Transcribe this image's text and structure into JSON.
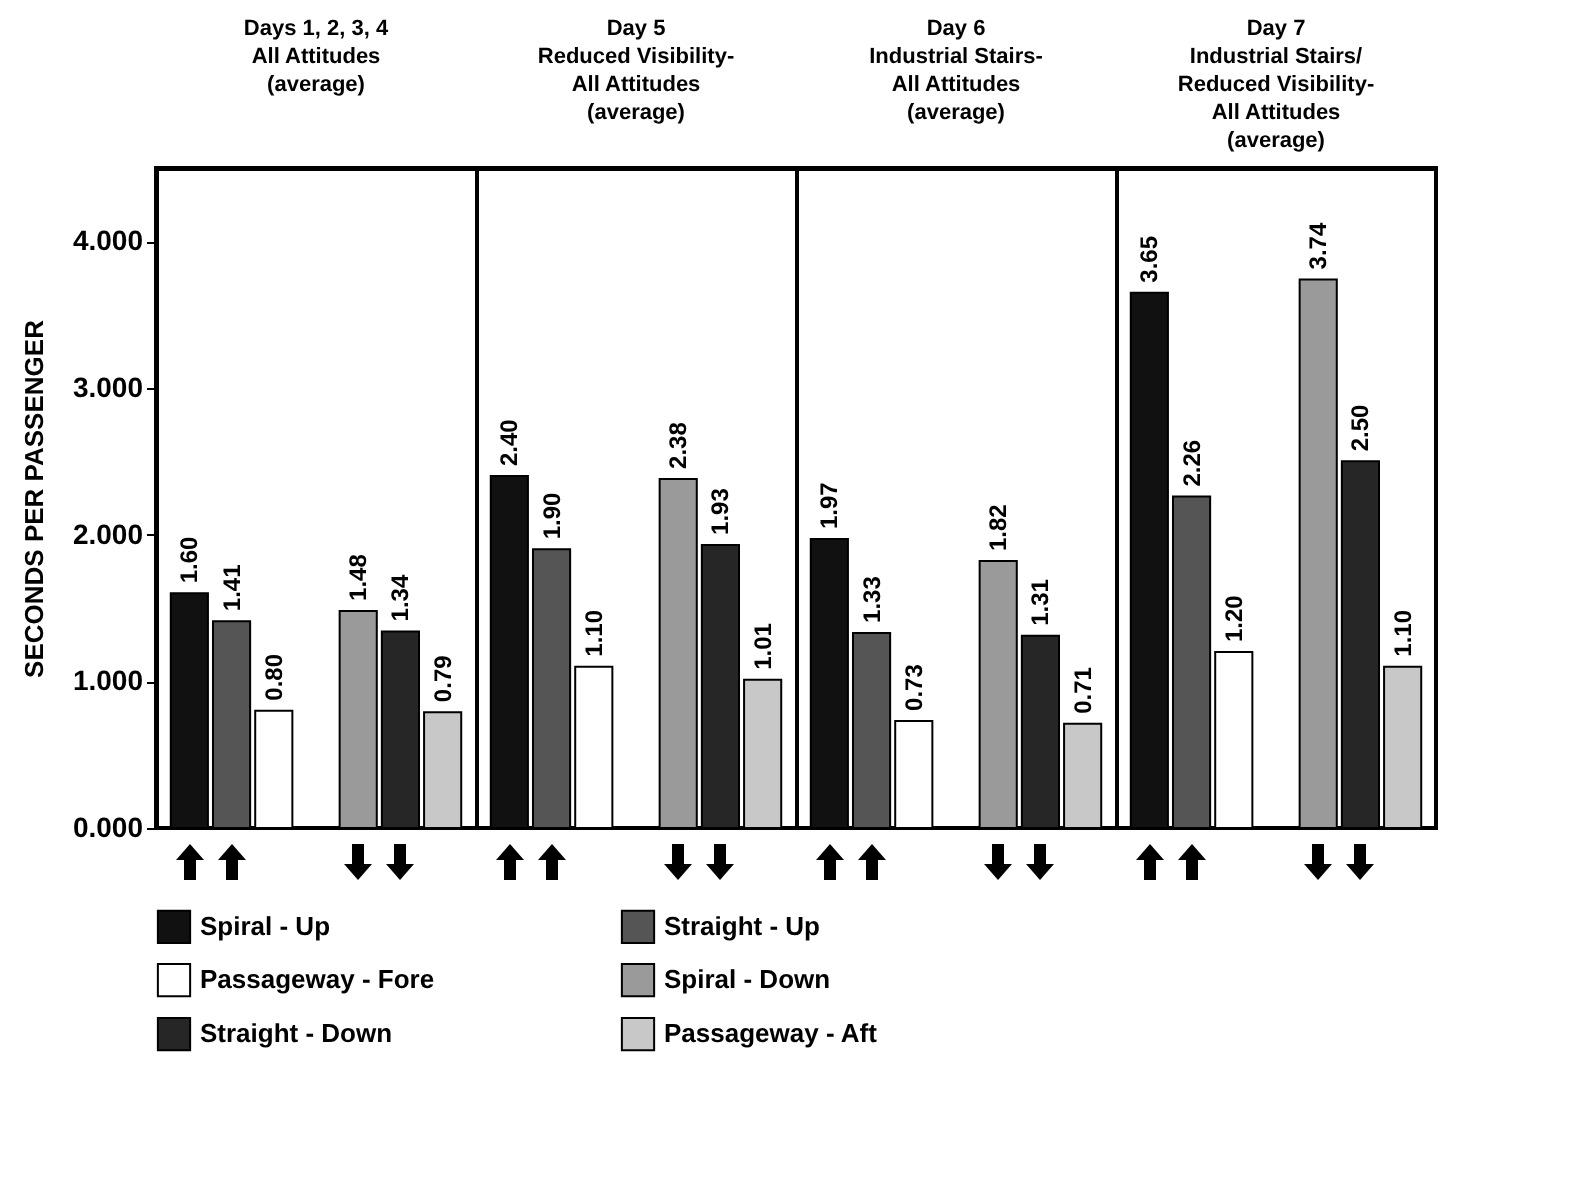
{
  "chart_data": {
    "type": "bar",
    "categories": [
      "Days 1, 2, 3, 4\nAll Attitudes\n(average)",
      "Day 5\nReduced Visibility-\nAll Attitudes\n(average)",
      "Day 6\nIndustrial Stairs-\nAll Attitudes\n(average)",
      "Day 7\nIndustrial Stairs/\nReduced Visibility-\nAll Attitudes\n(average)"
    ],
    "ylabel": "SECONDS PER PASSENGER",
    "ylim": [
      0,
      4.5
    ],
    "yticks": [
      {
        "value": 0,
        "label": "0.000"
      },
      {
        "value": 1,
        "label": "1.000"
      },
      {
        "value": 2,
        "label": "2.000"
      },
      {
        "value": 3,
        "label": "3.000"
      },
      {
        "value": 4,
        "label": "4.000"
      }
    ],
    "grid": "x",
    "legend": "bottom",
    "series": [
      {
        "name": "Spiral - Up",
        "color": "#111111",
        "values": [
          1.6,
          2.4,
          1.97,
          3.65
        ],
        "value_labels": [
          "1.60",
          "2.40",
          "1.97",
          "3.65"
        ]
      },
      {
        "name": "Straight - Up",
        "color": "#555555",
        "values": [
          1.41,
          1.9,
          1.33,
          2.26
        ],
        "value_labels": [
          "1.41",
          "1.90",
          "1.33",
          "2.26"
        ]
      },
      {
        "name": "Passageway - Fore",
        "color": "#ffffff",
        "values": [
          0.8,
          1.1,
          0.73,
          1.2
        ],
        "value_labels": [
          "0.80",
          "1.10",
          "0.73",
          "1.20"
        ]
      },
      {
        "name": "Spiral - Down",
        "color": "#9a9a9a",
        "values": [
          1.48,
          2.38,
          1.82,
          3.74
        ],
        "value_labels": [
          "1.48",
          "2.38",
          "1.82",
          "3.74"
        ]
      },
      {
        "name": "Straight - Down",
        "color": "#262626",
        "values": [
          1.34,
          1.93,
          1.31,
          2.5
        ],
        "value_labels": [
          "1.34",
          "1.93",
          "1.31",
          "2.50"
        ]
      },
      {
        "name": "Passageway - Aft",
        "color": "#c8c8c8",
        "values": [
          0.79,
          1.01,
          0.71,
          1.1
        ],
        "value_labels": [
          "0.79",
          "1.01",
          "0.71",
          "1.10"
        ]
      }
    ]
  }
}
